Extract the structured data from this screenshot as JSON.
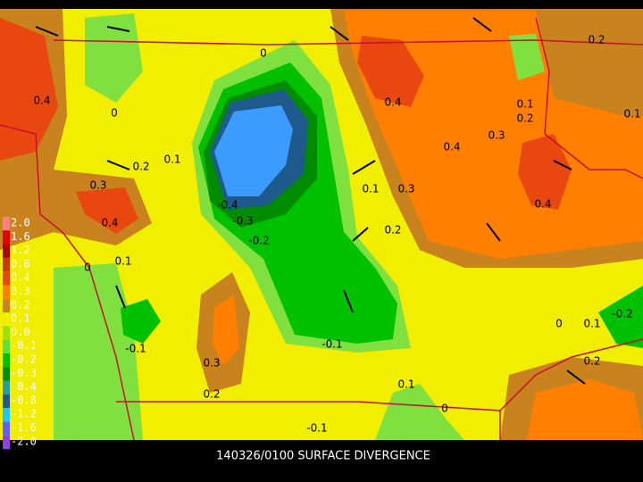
{
  "caption": "140326/0100 SURFACE DIVERGENCE",
  "colorbar": {
    "labels": [
      "2.0",
      "1.6",
      "1.2",
      "0.8",
      "0.4",
      "0.3",
      "0.2",
      "0.1",
      "0.0",
      "-0.1",
      "-0.2",
      "-0.3",
      "-0.4",
      "-0.8",
      "-1.2",
      "-1.6",
      "-2.0"
    ]
  },
  "contour_labels": [
    "0",
    "0.2",
    "0.4",
    "0",
    "0.4",
    "0.1",
    "0.1",
    "0.2",
    "0.3",
    "0.4",
    "0.1",
    "0.2",
    "0.3",
    "-0.4",
    "0.1",
    "0.3",
    "0.4",
    "-0.3",
    "0.4",
    "-0.2",
    "0.2",
    "0.1",
    "0",
    "0",
    "0.1",
    "-0.2",
    "-0.1",
    "-0.1",
    "0.3",
    "0.2",
    "0.1",
    "0.2",
    "0",
    "-0.1"
  ]
}
